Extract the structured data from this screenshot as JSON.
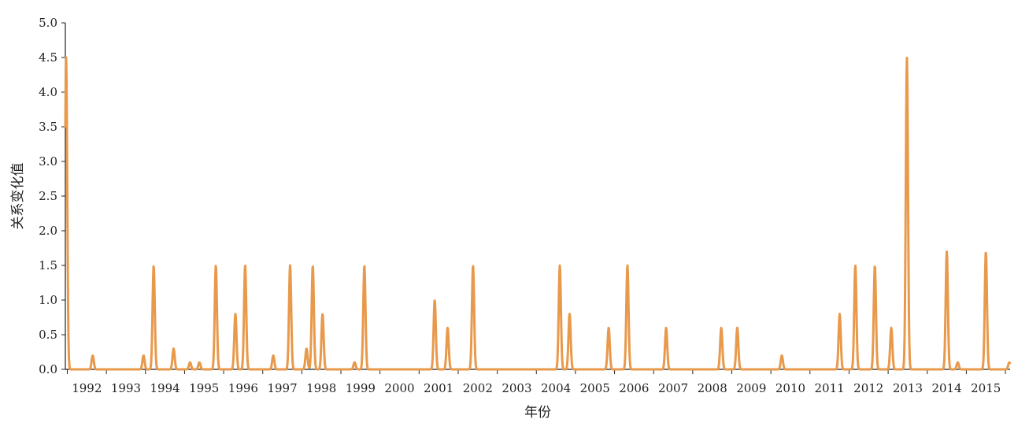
{
  "chart_data": {
    "type": "line",
    "title": "",
    "xlabel": "年份",
    "ylabel": "关系变化值",
    "ylim": [
      0,
      5.0
    ],
    "yticks": [
      "0.0",
      "0.5",
      "1.0",
      "1.5",
      "2.0",
      "2.5",
      "3.0",
      "3.5",
      "4.0",
      "4.5",
      "5.0"
    ],
    "xlim": [
      1991.45,
      2015.62
    ],
    "categories": [
      "1992",
      "1993",
      "1994",
      "1995",
      "1996",
      "1997",
      "1998",
      "1999",
      "2000",
      "2001",
      "2002",
      "2003",
      "2004",
      "2005",
      "2006",
      "2007",
      "2008",
      "2009",
      "2010",
      "2011",
      "2012",
      "2013",
      "2014",
      "2015"
    ],
    "grid": false,
    "legend": "none",
    "series": [
      {
        "color": "#E8994B",
        "peaks": [
          {
            "x": 1991.47,
            "y": 4.5
          },
          {
            "x": 1992.15,
            "y": 0.2
          },
          {
            "x": 1993.45,
            "y": 0.2
          },
          {
            "x": 1993.71,
            "y": 1.5
          },
          {
            "x": 1994.22,
            "y": 0.3
          },
          {
            "x": 1994.64,
            "y": 0.1
          },
          {
            "x": 1994.88,
            "y": 0.1
          },
          {
            "x": 1995.3,
            "y": 1.5
          },
          {
            "x": 1995.8,
            "y": 0.8
          },
          {
            "x": 1996.05,
            "y": 1.5
          },
          {
            "x": 1996.77,
            "y": 0.2
          },
          {
            "x": 1997.2,
            "y": 1.5
          },
          {
            "x": 1997.62,
            "y": 0.3
          },
          {
            "x": 1997.78,
            "y": 1.5
          },
          {
            "x": 1998.03,
            "y": 0.8
          },
          {
            "x": 1998.85,
            "y": 0.1
          },
          {
            "x": 1999.1,
            "y": 1.5
          },
          {
            "x": 2000.9,
            "y": 1.0
          },
          {
            "x": 2001.23,
            "y": 0.6
          },
          {
            "x": 2001.88,
            "y": 1.5
          },
          {
            "x": 2004.1,
            "y": 1.5
          },
          {
            "x": 2004.35,
            "y": 0.8
          },
          {
            "x": 2005.35,
            "y": 0.6
          },
          {
            "x": 2005.83,
            "y": 1.5
          },
          {
            "x": 2006.82,
            "y": 0.6
          },
          {
            "x": 2008.23,
            "y": 0.6
          },
          {
            "x": 2008.64,
            "y": 0.6
          },
          {
            "x": 2009.78,
            "y": 0.2
          },
          {
            "x": 2011.26,
            "y": 0.8
          },
          {
            "x": 2011.66,
            "y": 1.5
          },
          {
            "x": 2012.16,
            "y": 1.5
          },
          {
            "x": 2012.58,
            "y": 0.6
          },
          {
            "x": 2012.98,
            "y": 4.5
          },
          {
            "x": 2014.0,
            "y": 1.7
          },
          {
            "x": 2014.28,
            "y": 0.1
          },
          {
            "x": 2015.0,
            "y": 1.7
          },
          {
            "x": 2015.6,
            "y": 0.1
          }
        ]
      }
    ]
  }
}
